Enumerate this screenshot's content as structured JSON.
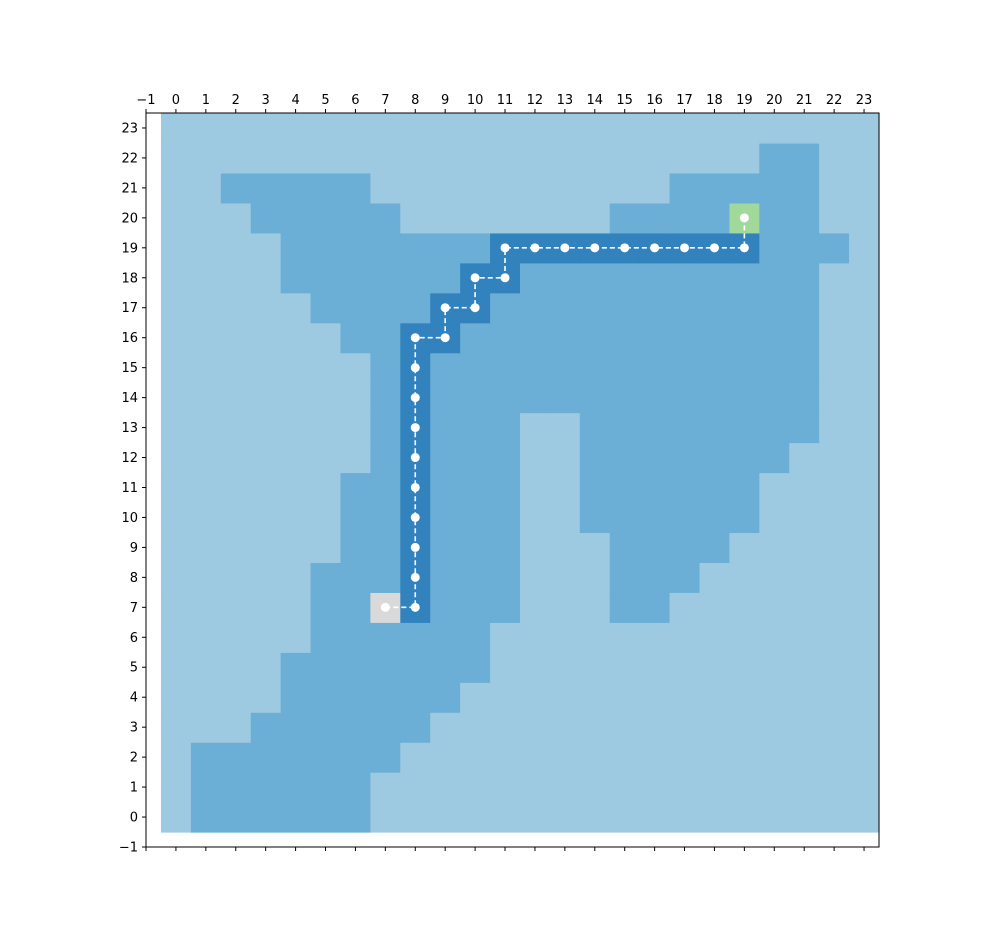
{
  "chart_data": {
    "type": "heatmap",
    "title": "",
    "xlabel": "",
    "ylabel": "",
    "xlim": [
      -1,
      23.5
    ],
    "ylim": [
      -1,
      23.5
    ],
    "x_ticks": [
      "−1",
      "0",
      "1",
      "2",
      "3",
      "4",
      "5",
      "6",
      "7",
      "8",
      "9",
      "10",
      "11",
      "12",
      "13",
      "14",
      "15",
      "16",
      "17",
      "18",
      "19",
      "20",
      "21",
      "22",
      "23"
    ],
    "y_ticks": [
      "−1",
      "0",
      "1",
      "2",
      "3",
      "4",
      "5",
      "6",
      "7",
      "8",
      "9",
      "10",
      "11",
      "12",
      "13",
      "14",
      "15",
      "16",
      "17",
      "18",
      "19",
      "20",
      "21",
      "22",
      "23"
    ],
    "x_tick_position": "top",
    "grid": false,
    "colors": {
      "background": "#9ecae1",
      "region": "#6baed6",
      "path": "#3182bd",
      "start": "#d9d9d9",
      "goal": "#a1d99b",
      "route_line": "#ffffff"
    },
    "region_rows": [
      {
        "y": 0,
        "ranges": [
          [
            1,
            6
          ]
        ]
      },
      {
        "y": 1,
        "ranges": [
          [
            1,
            6
          ]
        ]
      },
      {
        "y": 2,
        "ranges": [
          [
            1,
            7
          ]
        ]
      },
      {
        "y": 3,
        "ranges": [
          [
            3,
            8
          ]
        ]
      },
      {
        "y": 4,
        "ranges": [
          [
            4,
            9
          ]
        ]
      },
      {
        "y": 5,
        "ranges": [
          [
            4,
            10
          ]
        ]
      },
      {
        "y": 6,
        "ranges": [
          [
            5,
            10
          ]
        ]
      },
      {
        "y": 7,
        "ranges": [
          [
            5,
            11
          ],
          [
            15,
            16
          ]
        ]
      },
      {
        "y": 8,
        "ranges": [
          [
            5,
            11
          ],
          [
            15,
            17
          ]
        ]
      },
      {
        "y": 9,
        "ranges": [
          [
            6,
            11
          ],
          [
            15,
            18
          ]
        ]
      },
      {
        "y": 10,
        "ranges": [
          [
            6,
            11
          ],
          [
            14,
            19
          ]
        ]
      },
      {
        "y": 11,
        "ranges": [
          [
            6,
            11
          ],
          [
            14,
            19
          ]
        ]
      },
      {
        "y": 12,
        "ranges": [
          [
            7,
            11
          ],
          [
            14,
            20
          ]
        ]
      },
      {
        "y": 13,
        "ranges": [
          [
            7,
            11
          ],
          [
            14,
            21
          ]
        ]
      },
      {
        "y": 14,
        "ranges": [
          [
            7,
            21
          ]
        ]
      },
      {
        "y": 15,
        "ranges": [
          [
            7,
            21
          ]
        ]
      },
      {
        "y": 16,
        "ranges": [
          [
            6,
            21
          ]
        ]
      },
      {
        "y": 17,
        "ranges": [
          [
            5,
            21
          ]
        ]
      },
      {
        "y": 18,
        "ranges": [
          [
            4,
            21
          ]
        ]
      },
      {
        "y": 19,
        "ranges": [
          [
            4,
            22
          ]
        ]
      },
      {
        "y": 20,
        "ranges": [
          [
            3,
            7
          ],
          [
            15,
            21
          ]
        ]
      },
      {
        "y": 21,
        "ranges": [
          [
            2,
            6
          ],
          [
            17,
            21
          ]
        ]
      },
      {
        "y": 22,
        "ranges": [
          [
            20,
            21
          ]
        ]
      }
    ],
    "start": [
      7,
      7
    ],
    "goal": [
      19,
      20
    ],
    "path": [
      [
        7,
        7
      ],
      [
        8,
        7
      ],
      [
        8,
        8
      ],
      [
        8,
        9
      ],
      [
        8,
        10
      ],
      [
        8,
        11
      ],
      [
        8,
        12
      ],
      [
        8,
        13
      ],
      [
        8,
        14
      ],
      [
        8,
        15
      ],
      [
        8,
        16
      ],
      [
        9,
        16
      ],
      [
        9,
        17
      ],
      [
        10,
        17
      ],
      [
        10,
        18
      ],
      [
        11,
        18
      ],
      [
        11,
        19
      ],
      [
        12,
        19
      ],
      [
        13,
        19
      ],
      [
        14,
        19
      ],
      [
        15,
        19
      ],
      [
        16,
        19
      ],
      [
        17,
        19
      ],
      [
        18,
        19
      ],
      [
        19,
        19
      ],
      [
        19,
        20
      ]
    ]
  }
}
